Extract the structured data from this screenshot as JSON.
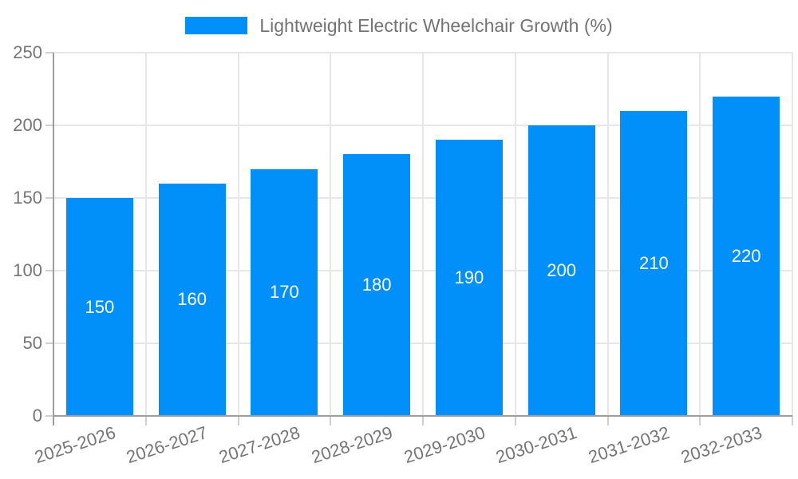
{
  "legend": {
    "label": "Lightweight Electric Wheelchair Growth (%)"
  },
  "chart_data": {
    "type": "bar",
    "title": "",
    "legend_entries": [
      "Lightweight Electric Wheelchair Growth (%)"
    ],
    "legend_position": "top-center",
    "categories": [
      "2025-2026",
      "2026-2027",
      "2027-2028",
      "2028-2029",
      "2029-2030",
      "2030-2031",
      "2031-2032",
      "2032-2033"
    ],
    "values": [
      150,
      160,
      170,
      180,
      190,
      200,
      210,
      220
    ],
    "value_labels": [
      "150",
      "160",
      "170",
      "180",
      "190",
      "200",
      "210",
      "220"
    ],
    "value_label_position": "inside-middle",
    "xlabel": "",
    "ylabel": "",
    "ylim": [
      0,
      250
    ],
    "yticks": [
      0,
      50,
      100,
      150,
      200,
      250
    ],
    "grid": true,
    "x_label_rotation_deg": -18
  },
  "colors": {
    "bar": "#0190f9",
    "axis": "#9e9e9e",
    "grid": "#e7e7e7",
    "tick": "#d0d0d0",
    "tick_label": "#757575",
    "legend_text": "#737373",
    "value_label": "#ffffff",
    "background": "#ffffff"
  }
}
